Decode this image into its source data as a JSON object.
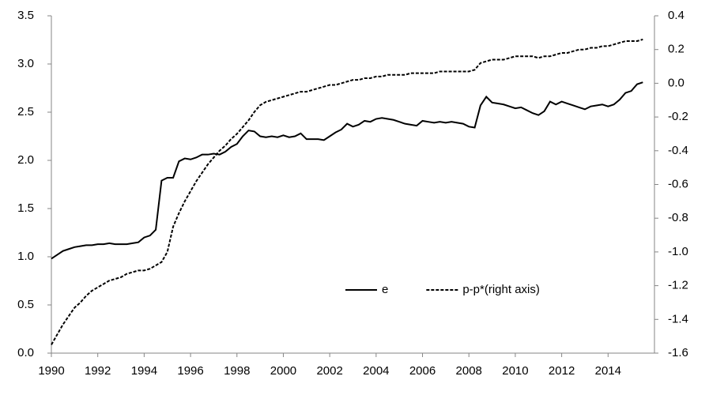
{
  "chart_data": {
    "type": "line",
    "x": [
      1990,
      1990.25,
      1990.5,
      1990.75,
      1991,
      1991.25,
      1991.5,
      1991.75,
      1992,
      1992.25,
      1992.5,
      1992.75,
      1993,
      1993.25,
      1993.5,
      1993.75,
      1994,
      1994.25,
      1994.5,
      1994.75,
      1995,
      1995.25,
      1995.5,
      1995.75,
      1996,
      1996.25,
      1996.5,
      1996.75,
      1997,
      1997.25,
      1997.5,
      1997.75,
      1998,
      1998.25,
      1998.5,
      1998.75,
      1999,
      1999.25,
      1999.5,
      1999.75,
      2000,
      2000.25,
      2000.5,
      2000.75,
      2001,
      2001.25,
      2001.5,
      2001.75,
      2002,
      2002.25,
      2002.5,
      2002.75,
      2003,
      2003.25,
      2003.5,
      2003.75,
      2004,
      2004.25,
      2004.5,
      2004.75,
      2005,
      2005.25,
      2005.5,
      2005.75,
      2006,
      2006.25,
      2006.5,
      2006.75,
      2007,
      2007.25,
      2007.5,
      2007.75,
      2008,
      2008.25,
      2008.5,
      2008.75,
      2009,
      2009.25,
      2009.5,
      2009.75,
      2010,
      2010.25,
      2010.5,
      2010.75,
      2011,
      2011.25,
      2011.5,
      2011.75,
      2012,
      2012.25,
      2012.5,
      2012.75,
      2013,
      2013.25,
      2013.5,
      2013.75,
      2014,
      2014.25,
      2014.5,
      2014.75,
      2015,
      2015.25,
      2015.5
    ],
    "series": [
      {
        "name": "e",
        "color": "#000000",
        "dash": "solid",
        "values": [
          0.98,
          1.02,
          1.06,
          1.08,
          1.1,
          1.11,
          1.12,
          1.12,
          1.13,
          1.13,
          1.14,
          1.13,
          1.13,
          1.13,
          1.14,
          1.15,
          1.2,
          1.22,
          1.28,
          1.79,
          1.82,
          1.82,
          1.99,
          2.02,
          2.01,
          2.03,
          2.06,
          2.06,
          2.07,
          2.06,
          2.09,
          2.14,
          2.17,
          2.25,
          2.31,
          2.3,
          2.25,
          2.24,
          2.25,
          2.24,
          2.26,
          2.24,
          2.25,
          2.28,
          2.22,
          2.22,
          2.22,
          2.21,
          2.25,
          2.29,
          2.32,
          2.38,
          2.35,
          2.37,
          2.41,
          2.4,
          2.43,
          2.44,
          2.43,
          2.42,
          2.4,
          2.38,
          2.37,
          2.36,
          2.41,
          2.4,
          2.39,
          2.4,
          2.39,
          2.4,
          2.39,
          2.38,
          2.35,
          2.34,
          2.57,
          2.66,
          2.6,
          2.59,
          2.58,
          2.56,
          2.54,
          2.55,
          2.52,
          2.49,
          2.47,
          2.51,
          2.61,
          2.58,
          2.61,
          2.59,
          2.57,
          2.55,
          2.53,
          2.56,
          2.57,
          2.58,
          2.56,
          2.58,
          2.63,
          2.7,
          2.72,
          2.79,
          2.81
        ]
      },
      {
        "name": "p-p*(right axis)",
        "color": "#000000",
        "dash": "dashed",
        "axis": "y2",
        "values": [
          -1.55,
          -1.49,
          -1.43,
          -1.38,
          -1.33,
          -1.3,
          -1.26,
          -1.23,
          -1.21,
          -1.19,
          -1.17,
          -1.16,
          -1.15,
          -1.13,
          -1.12,
          -1.11,
          -1.11,
          -1.1,
          -1.08,
          -1.06,
          -1.0,
          -0.85,
          -0.77,
          -0.7,
          -0.64,
          -0.58,
          -0.53,
          -0.48,
          -0.44,
          -0.4,
          -0.37,
          -0.33,
          -0.3,
          -0.26,
          -0.22,
          -0.17,
          -0.13,
          -0.11,
          -0.1,
          -0.09,
          -0.08,
          -0.07,
          -0.06,
          -0.05,
          -0.05,
          -0.04,
          -0.03,
          -0.02,
          -0.01,
          -0.01,
          0.0,
          0.01,
          0.02,
          0.02,
          0.03,
          0.03,
          0.04,
          0.04,
          0.05,
          0.05,
          0.05,
          0.05,
          0.06,
          0.06,
          0.06,
          0.06,
          0.06,
          0.07,
          0.07,
          0.07,
          0.07,
          0.07,
          0.07,
          0.08,
          0.12,
          0.13,
          0.14,
          0.14,
          0.14,
          0.15,
          0.16,
          0.16,
          0.16,
          0.16,
          0.15,
          0.16,
          0.16,
          0.17,
          0.18,
          0.18,
          0.19,
          0.2,
          0.2,
          0.21,
          0.21,
          0.22,
          0.22,
          0.23,
          0.24,
          0.25,
          0.25,
          0.25,
          0.26
        ]
      }
    ],
    "xlim": [
      1990,
      2016
    ],
    "xticks": [
      1990,
      1992,
      1994,
      1996,
      1998,
      2000,
      2002,
      2004,
      2006,
      2008,
      2010,
      2012,
      2014
    ],
    "ylim": [
      0,
      3.5
    ],
    "yticks": [
      {
        "value": 0,
        "label": "0.0"
      },
      0.5,
      {
        "value": 1,
        "label": "1.0"
      },
      1.5,
      {
        "value": 2,
        "label": "2.0"
      },
      2.5,
      {
        "value": 3,
        "label": "3.0"
      },
      3.5
    ],
    "y2lim": [
      -1.6,
      0.4
    ],
    "y2ticks": [
      -1.6,
      -1.4,
      -1.2,
      {
        "value": -1,
        "label": "-1.0"
      },
      -0.8,
      -0.6,
      -0.4,
      -0.2,
      {
        "value": 0,
        "label": "0.0"
      },
      0.2,
      0.4
    ],
    "grid": false,
    "legend": "lower right"
  }
}
